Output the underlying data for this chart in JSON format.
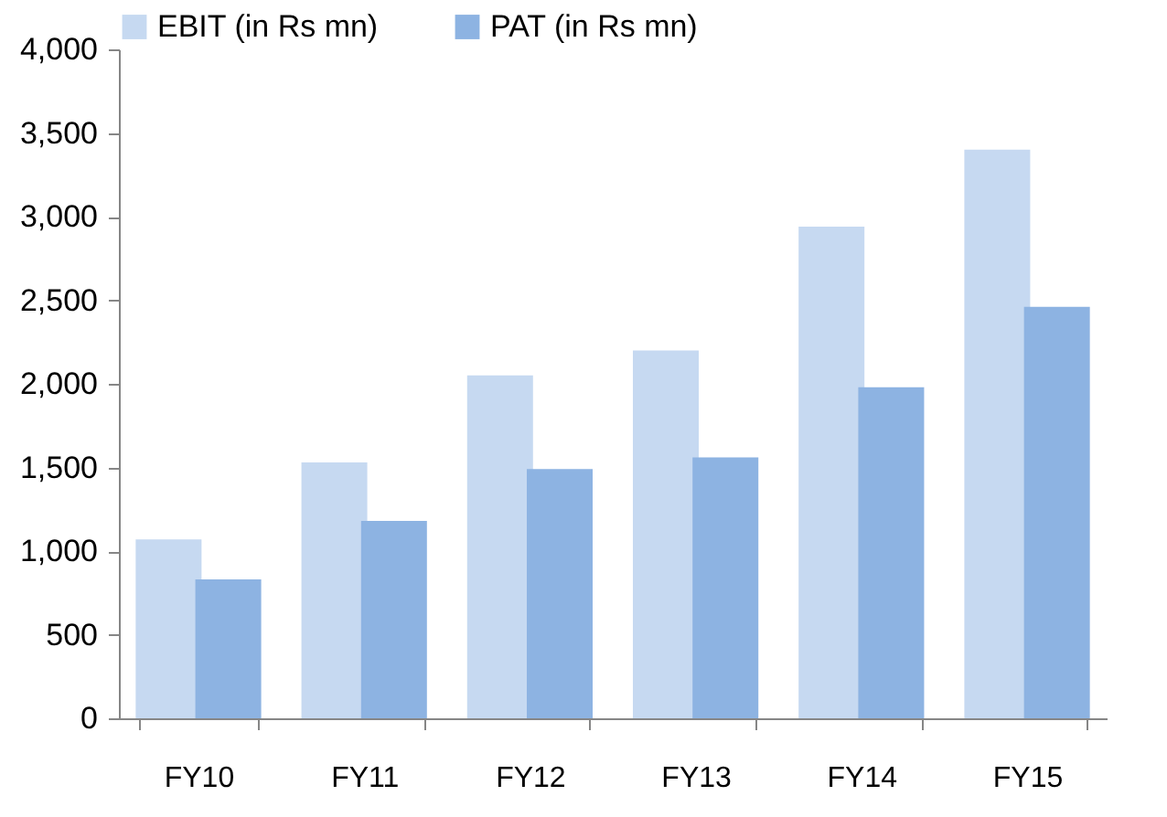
{
  "chart_data": {
    "type": "bar",
    "categories": [
      "FY10",
      "FY11",
      "FY12",
      "FY13",
      "FY14",
      "FY15"
    ],
    "series": [
      {
        "name": "EBIT (in Rs mn)",
        "color": "#c6d9f1",
        "values": [
          1070,
          1530,
          2050,
          2200,
          2940,
          3400
        ]
      },
      {
        "name": "PAT (in Rs mn)",
        "color": "#8db3e2",
        "values": [
          830,
          1180,
          1490,
          1560,
          1980,
          2460
        ]
      }
    ],
    "ylim": [
      0,
      4000
    ],
    "yticks": [
      {
        "value": 0,
        "label": "0"
      },
      {
        "value": 500,
        "label": "500"
      },
      {
        "value": 1000,
        "label": "1,000"
      },
      {
        "value": 1500,
        "label": "1,500"
      },
      {
        "value": 2000,
        "label": "2,000"
      },
      {
        "value": 2500,
        "label": "2,500"
      },
      {
        "value": 3000,
        "label": "3,000"
      },
      {
        "value": 3500,
        "label": "3,500"
      },
      {
        "value": 4000,
        "label": "4,000"
      }
    ],
    "grid": false,
    "legend": "top"
  }
}
